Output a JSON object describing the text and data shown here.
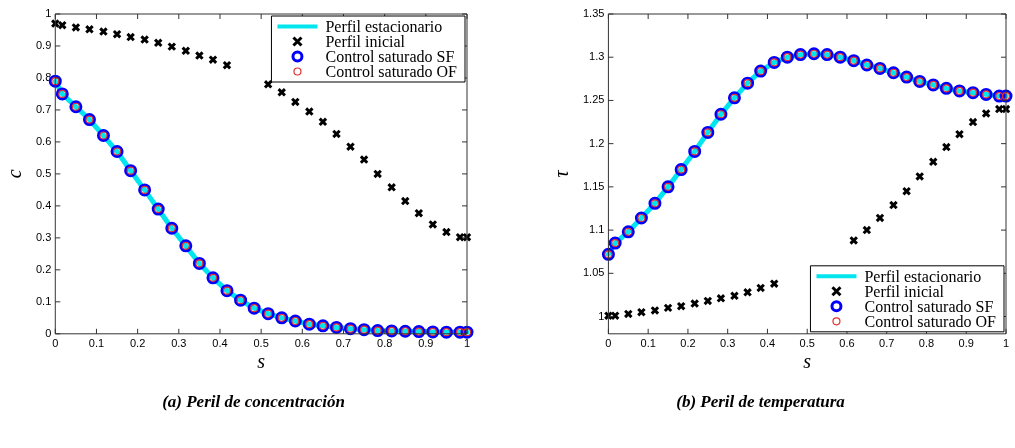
{
  "chart_data": [
    {
      "type": "line",
      "xlabel": "s",
      "ylabel": "c",
      "annotations": [
        "(a) Peril de concentración"
      ],
      "xlim": [
        0,
        1
      ],
      "ylim": [
        0,
        1
      ],
      "xticks": [
        0,
        0.1,
        0.2,
        0.3,
        0.4,
        0.5,
        0.6,
        0.7,
        0.8,
        0.9,
        1
      ],
      "yticks": [
        0,
        0.1,
        0.2,
        0.3,
        0.4,
        0.5,
        0.6,
        0.7,
        0.8,
        0.9,
        1
      ],
      "grid": false,
      "legend": "top right",
      "x": [
        0,
        0.017,
        0.05,
        0.083,
        0.117,
        0.15,
        0.183,
        0.217,
        0.25,
        0.283,
        0.317,
        0.35,
        0.383,
        0.417,
        0.45,
        0.483,
        0.517,
        0.55,
        0.583,
        0.617,
        0.65,
        0.683,
        0.717,
        0.75,
        0.783,
        0.817,
        0.85,
        0.883,
        0.917,
        0.95,
        0.983,
        1
      ],
      "series": [
        {
          "name": "Perfil estacionario",
          "type": "line",
          "marker": "none",
          "line_style": "solid",
          "color": "#00e5ee",
          "values": [
            0.79,
            0.75,
            0.71,
            0.67,
            0.62,
            0.57,
            0.51,
            0.45,
            0.39,
            0.33,
            0.275,
            0.22,
            0.175,
            0.135,
            0.105,
            0.08,
            0.063,
            0.05,
            0.04,
            0.03,
            0.025,
            0.02,
            0.016,
            0.013,
            0.01,
            0.009,
            0.008,
            0.007,
            0.006,
            0.005,
            0.005,
            0.005
          ]
        },
        {
          "name": "Perfil inicial",
          "type": "scatter",
          "marker": "cross",
          "color": "#000000",
          "values": [
            0.97,
            0.965,
            0.958,
            0.952,
            0.945,
            0.937,
            0.928,
            0.92,
            0.91,
            0.898,
            0.885,
            0.87,
            0.857,
            0.84,
            null,
            null,
            0.78,
            0.755,
            0.725,
            0.695,
            0.663,
            0.625,
            0.585,
            0.545,
            0.5,
            0.458,
            0.415,
            0.377,
            0.342,
            0.318,
            0.302,
            0.302
          ]
        },
        {
          "name": "Control saturado SF",
          "type": "scatter",
          "marker": "circle",
          "color": "#0000ff",
          "values": [
            0.79,
            0.75,
            0.71,
            0.67,
            0.62,
            0.57,
            0.51,
            0.45,
            0.39,
            0.33,
            0.275,
            0.22,
            0.175,
            0.135,
            0.105,
            0.08,
            0.063,
            0.05,
            0.04,
            0.03,
            0.025,
            0.02,
            0.016,
            0.013,
            0.01,
            0.009,
            0.008,
            0.007,
            0.006,
            0.005,
            0.005,
            0.005
          ]
        },
        {
          "name": "Control saturado OF",
          "type": "scatter",
          "marker": "circle",
          "color": "#e03030",
          "values": [
            0.79,
            0.75,
            0.71,
            0.67,
            0.62,
            0.57,
            0.51,
            0.45,
            0.39,
            0.33,
            0.275,
            0.22,
            0.175,
            0.135,
            0.105,
            0.08,
            0.063,
            0.05,
            0.04,
            0.03,
            0.025,
            0.02,
            0.016,
            0.013,
            0.01,
            0.009,
            0.008,
            0.007,
            0.006,
            0.005,
            0.005,
            0.005
          ]
        }
      ]
    },
    {
      "type": "line",
      "xlabel": "s",
      "ylabel": "τ",
      "annotations": [
        "(b) Peril de temperatura"
      ],
      "xlim": [
        0,
        1
      ],
      "ylim": [
        0.98,
        1.35
      ],
      "xticks": [
        0,
        0.1,
        0.2,
        0.3,
        0.4,
        0.5,
        0.6,
        0.7,
        0.8,
        0.9,
        1
      ],
      "yticks": [
        1,
        1.05,
        1.1,
        1.15,
        1.2,
        1.25,
        1.3,
        1.35
      ],
      "grid": false,
      "legend": "bottom right",
      "x": [
        0,
        0.017,
        0.05,
        0.083,
        0.117,
        0.15,
        0.183,
        0.217,
        0.25,
        0.283,
        0.317,
        0.35,
        0.383,
        0.417,
        0.45,
        0.483,
        0.517,
        0.55,
        0.583,
        0.617,
        0.65,
        0.683,
        0.717,
        0.75,
        0.783,
        0.817,
        0.85,
        0.883,
        0.917,
        0.95,
        0.983,
        1
      ],
      "series": [
        {
          "name": "Perfil estacionario",
          "type": "line",
          "marker": "none",
          "line_style": "solid",
          "color": "#00e5ee",
          "values": [
            1.072,
            1.085,
            1.098,
            1.114,
            1.131,
            1.15,
            1.17,
            1.191,
            1.213,
            1.234,
            1.253,
            1.27,
            1.284,
            1.294,
            1.3,
            1.303,
            1.304,
            1.303,
            1.3,
            1.296,
            1.291,
            1.287,
            1.282,
            1.277,
            1.272,
            1.268,
            1.264,
            1.261,
            1.259,
            1.257,
            1.255,
            1.255
          ]
        },
        {
          "name": "Perfil inicial",
          "type": "scatter",
          "marker": "cross",
          "color": "#000000",
          "values": [
            1.001,
            1.001,
            1.003,
            1.005,
            1.007,
            1.01,
            1.012,
            1.015,
            1.018,
            1.021,
            1.024,
            1.028,
            1.033,
            1.038,
            null,
            null,
            null,
            null,
            null,
            1.088,
            1.1,
            1.114,
            1.129,
            1.145,
            1.162,
            1.179,
            1.196,
            1.211,
            1.225,
            1.235,
            1.24,
            1.24
          ]
        },
        {
          "name": "Control saturado SF",
          "type": "scatter",
          "marker": "circle",
          "color": "#0000ff",
          "values": [
            1.072,
            1.085,
            1.098,
            1.114,
            1.131,
            1.15,
            1.17,
            1.191,
            1.213,
            1.234,
            1.253,
            1.27,
            1.284,
            1.294,
            1.3,
            1.303,
            1.304,
            1.303,
            1.3,
            1.296,
            1.291,
            1.287,
            1.282,
            1.277,
            1.272,
            1.268,
            1.264,
            1.261,
            1.259,
            1.257,
            1.255,
            1.255
          ]
        },
        {
          "name": "Control saturado OF",
          "type": "scatter",
          "marker": "circle",
          "color": "#e03030",
          "values": [
            1.072,
            1.085,
            1.098,
            1.114,
            1.131,
            1.15,
            1.17,
            1.191,
            1.213,
            1.234,
            1.253,
            1.27,
            1.284,
            1.294,
            1.3,
            1.303,
            1.304,
            1.303,
            1.3,
            1.296,
            1.291,
            1.287,
            1.282,
            1.277,
            1.272,
            1.268,
            1.264,
            1.261,
            1.259,
            1.257,
            1.255,
            1.255
          ]
        }
      ]
    }
  ]
}
